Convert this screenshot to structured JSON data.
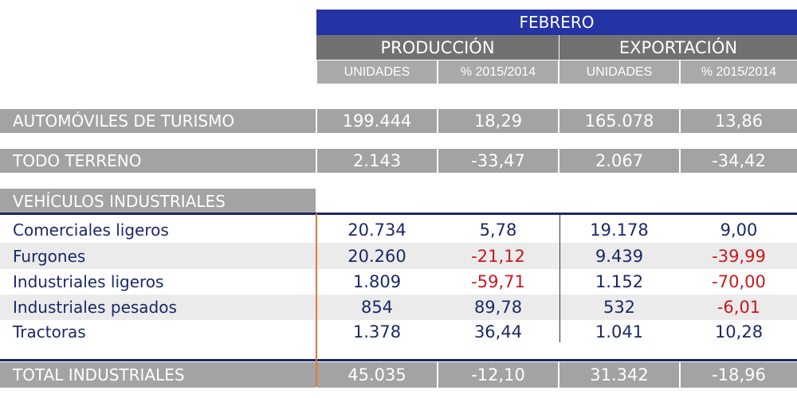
{
  "header": {
    "month": "FEBRERO",
    "groups": [
      "PRODUCCIÓN",
      "EXPORTACIÓN"
    ],
    "subcols": [
      "UNIDADES",
      "% 2015/2014",
      "UNIDADES",
      "% 2015/2014"
    ]
  },
  "top_rows": [
    {
      "label": "AUTOMÓVILES DE TURISMO",
      "values": [
        "199.444",
        "18,29",
        "165.078",
        "13,86"
      ]
    },
    {
      "label": "TODO TERRENO",
      "values": [
        "2.143",
        "-33,47",
        "2.067",
        "-34,42"
      ]
    }
  ],
  "section_title": "VEHÍCULOS INDUSTRIALES",
  "rows": [
    {
      "label": "Comerciales ligeros",
      "values": [
        "20.734",
        "5,78",
        "19.178",
        "9,00"
      ],
      "negative": [
        false,
        false,
        false,
        false
      ]
    },
    {
      "label": "Furgones",
      "values": [
        "20.260",
        "-21,12",
        "9.439",
        "-39,99"
      ],
      "negative": [
        false,
        true,
        false,
        true
      ]
    },
    {
      "label": "Industriales ligeros",
      "values": [
        "1.809",
        "-59,71",
        "1.152",
        "-70,00"
      ],
      "negative": [
        false,
        true,
        false,
        true
      ]
    },
    {
      "label": "Industriales pesados",
      "values": [
        "854",
        "89,78",
        "532",
        "-6,01"
      ],
      "negative": [
        false,
        false,
        false,
        true
      ]
    },
    {
      "label": "Tractoras",
      "values": [
        "1.378",
        "36,44",
        "1.041",
        "10,28"
      ],
      "negative": [
        false,
        false,
        false,
        false
      ]
    }
  ],
  "total": {
    "label": "TOTAL INDUSTRIALES",
    "values": [
      "45.035",
      "-12,10",
      "31.342",
      "-18,96"
    ]
  },
  "colors": {
    "blue": "#2434a4",
    "navy_text": "#1b2868",
    "negative": "#c8181d",
    "orange": "#e07a2c"
  }
}
